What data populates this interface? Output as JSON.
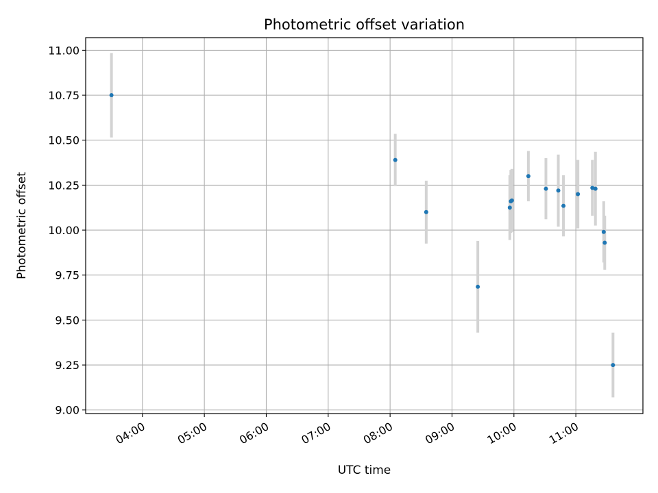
{
  "chart_data": {
    "type": "scatter",
    "title": "Photometric offset variation",
    "xlabel": "UTC time",
    "ylabel": "Photometric offset",
    "xlim": [
      "03:05",
      "12:05"
    ],
    "ylim": [
      8.98,
      11.07
    ],
    "x_ticks": [
      "04:00",
      "05:00",
      "06:00",
      "07:00",
      "08:00",
      "09:00",
      "10:00",
      "11:00"
    ],
    "y_ticks": [
      "9.00",
      "9.25",
      "9.50",
      "9.75",
      "10.00",
      "10.25",
      "10.50",
      "10.75",
      "11.00"
    ],
    "grid": true,
    "colors": {
      "point": "#1f77b4",
      "errorbar": "#d3d3d3",
      "grid": "#b0b0b0"
    },
    "points": [
      {
        "x": "03:30",
        "y": 10.75,
        "err": 0.235
      },
      {
        "x": "08:05",
        "y": 10.39,
        "err": 0.145
      },
      {
        "x": "08:35",
        "y": 10.1,
        "err": 0.175
      },
      {
        "x": "09:25",
        "y": 9.685,
        "err": 0.255
      },
      {
        "x": "09:56",
        "y": 10.125,
        "err": 0.18
      },
      {
        "x": "09:57",
        "y": 10.16,
        "err": 0.175
      },
      {
        "x": "09:58",
        "y": 10.165,
        "err": 0.175
      },
      {
        "x": "10:14",
        "y": 10.3,
        "err": 0.14
      },
      {
        "x": "10:31",
        "y": 10.23,
        "err": 0.17
      },
      {
        "x": "10:43",
        "y": 10.22,
        "err": 0.2
      },
      {
        "x": "10:48",
        "y": 10.135,
        "err": 0.17
      },
      {
        "x": "11:02",
        "y": 10.2,
        "err": 0.19
      },
      {
        "x": "11:16",
        "y": 10.235,
        "err": 0.155
      },
      {
        "x": "11:19",
        "y": 10.23,
        "err": 0.205
      },
      {
        "x": "11:27",
        "y": 9.99,
        "err": 0.17
      },
      {
        "x": "11:28",
        "y": 9.93,
        "err": 0.15
      },
      {
        "x": "11:36",
        "y": 9.25,
        "err": 0.18
      }
    ]
  }
}
